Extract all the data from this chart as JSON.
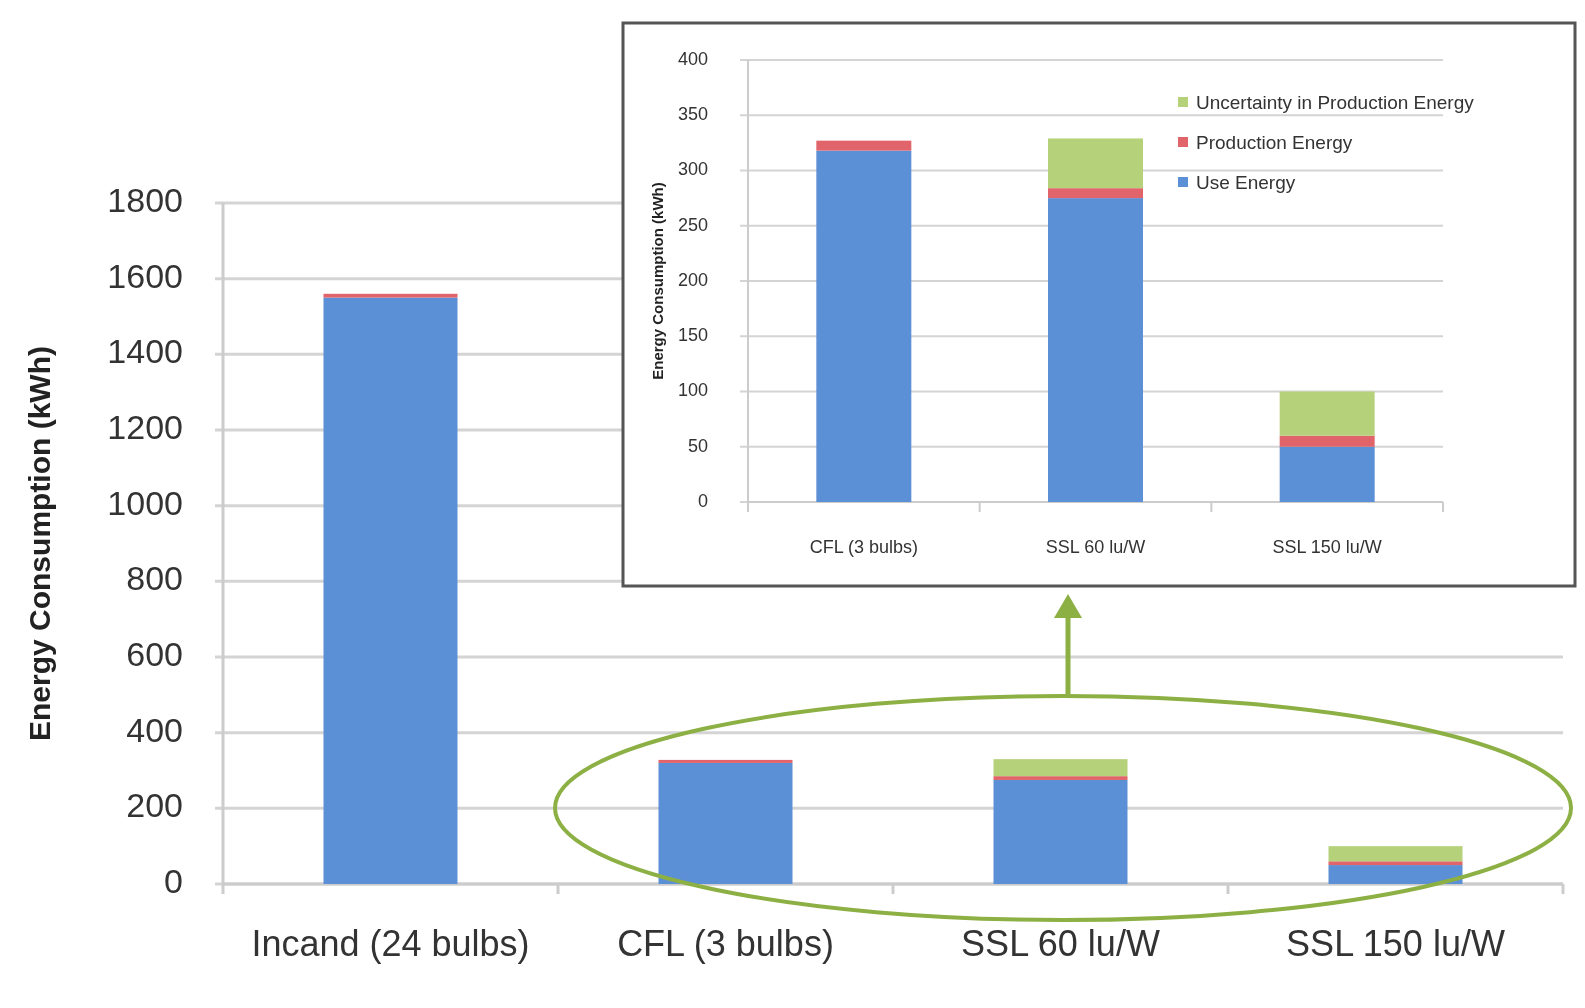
{
  "chart_data": [
    {
      "type": "bar",
      "ylabel": "Energy Consumption (kWh)",
      "categories": [
        "Incand (24 bulbs)",
        "CFL (3 bulbs)",
        "SSL 60 lu/W",
        "SSL 150 lu/W"
      ],
      "stacked": true,
      "ylim": [
        0,
        1800
      ],
      "yticks": [
        0,
        200,
        400,
        600,
        800,
        1000,
        1200,
        1400,
        1600,
        1800
      ],
      "grid": "y",
      "legend": false,
      "series": [
        {
          "color": "#5b8fd6",
          "values": [
            1550,
            320,
            275,
            50
          ]
        },
        {
          "color": "#e0646a",
          "values": [
            10,
            8,
            10,
            10
          ]
        },
        {
          "color": "#b5d27a",
          "values": [
            null,
            null,
            45,
            40
          ]
        }
      ]
    },
    {
      "type": "bar",
      "ylabel": "Energy Consumption (kWh)",
      "categories": [
        "CFL (3 bulbs)",
        "SSL 60 lu/W",
        "SSL 150 lu/W"
      ],
      "stacked": true,
      "ylim": [
        0,
        400
      ],
      "yticks": [
        0,
        50,
        100,
        150,
        200,
        250,
        300,
        350,
        400
      ],
      "grid": "y",
      "legend": "top right",
      "series": [
        {
          "name": "Use Energy",
          "color": "#5b8fd6",
          "values": [
            318,
            275,
            50
          ]
        },
        {
          "name": "Production Energy",
          "color": "#e0646a",
          "values": [
            9,
            9,
            10
          ]
        },
        {
          "name": "Uncertainty in Production Energy",
          "color": "#b5d27a",
          "values": [
            null,
            45,
            40
          ]
        }
      ]
    }
  ]
}
